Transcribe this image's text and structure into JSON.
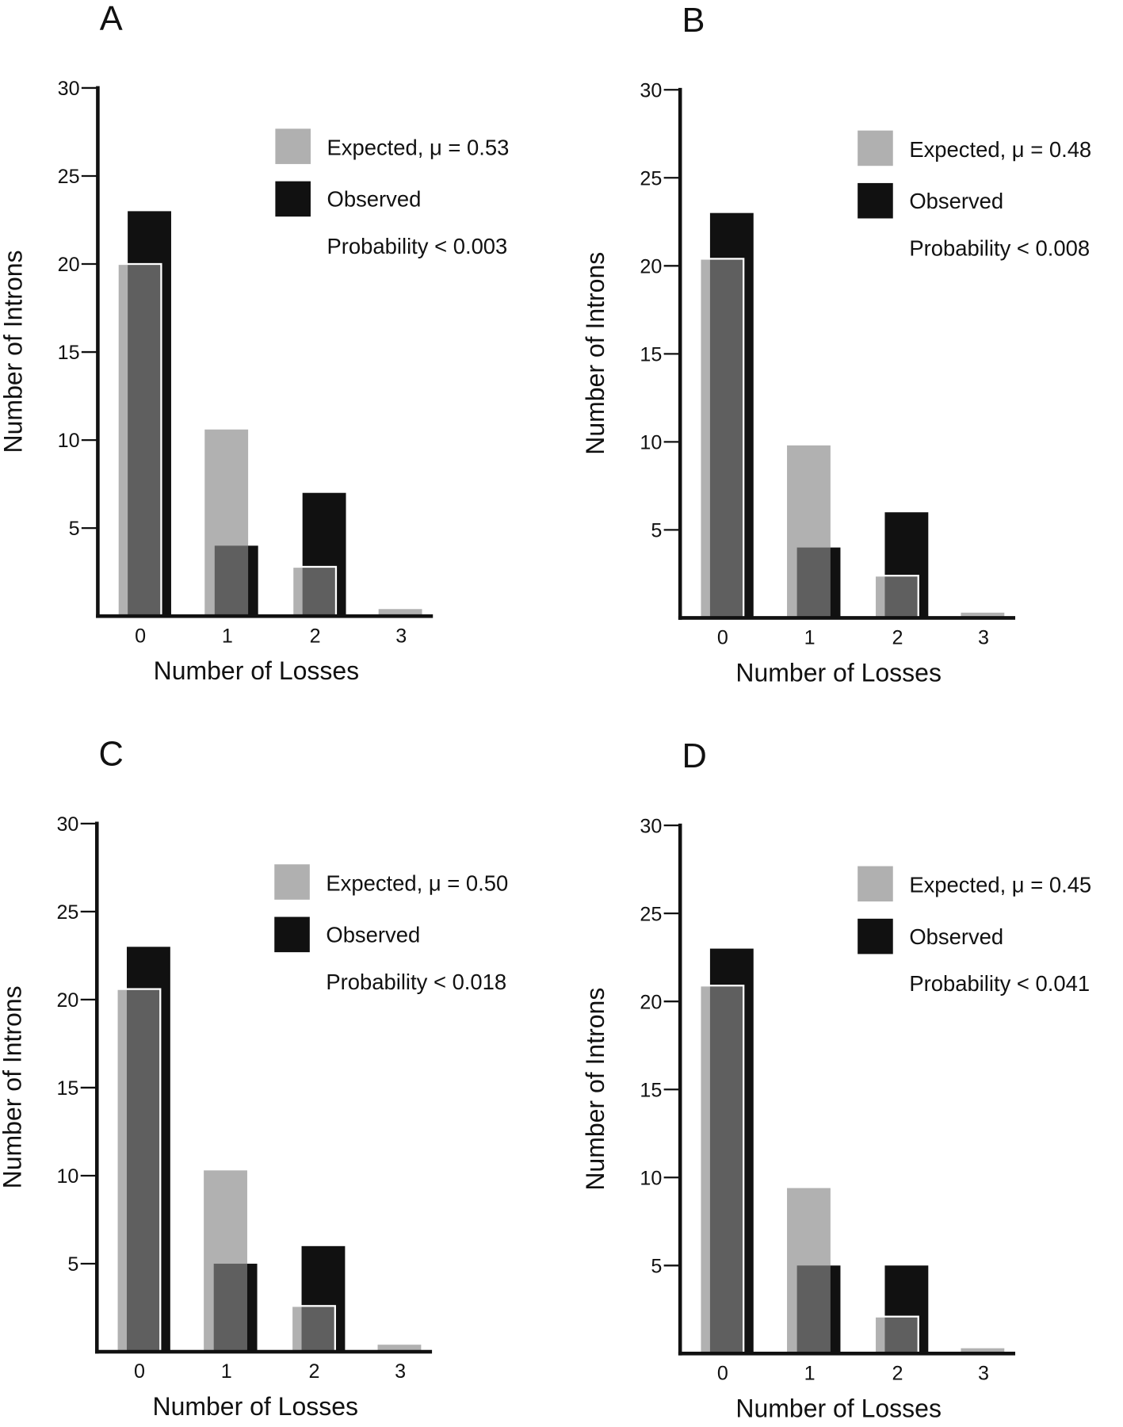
{
  "colors": {
    "expected": "#b0b0b0",
    "observed": "#111111",
    "overlap": "#5a5a5a"
  },
  "chart_data": [
    {
      "panel": "A",
      "type": "bar",
      "categories": [
        "0",
        "1",
        "2",
        "3"
      ],
      "xlabel": "Number of Losses",
      "ylabel": "Number of Introns",
      "ylim": [
        0,
        30
      ],
      "yticks": [
        "5",
        "10",
        "15",
        "20",
        "25",
        "30"
      ],
      "legend": {
        "expected": "Expected, μ = 0.53",
        "observed": "Observed",
        "note": "Probability < 0.003"
      },
      "series": [
        {
          "name": "Expected",
          "values": [
            20.0,
            10.6,
            2.8,
            0.4
          ]
        },
        {
          "name": "Observed",
          "values": [
            23,
            4,
            7,
            0
          ]
        }
      ]
    },
    {
      "panel": "B",
      "type": "bar",
      "categories": [
        "0",
        "1",
        "2",
        "3"
      ],
      "xlabel": "Number of Losses",
      "ylabel": "Number of Introns",
      "ylim": [
        0,
        30
      ],
      "yticks": [
        "5",
        "10",
        "15",
        "20",
        "25",
        "30"
      ],
      "legend": {
        "expected": "Expected, μ = 0.48",
        "observed": "Observed",
        "note": "Probability < 0.008"
      },
      "series": [
        {
          "name": "Expected",
          "values": [
            20.4,
            9.8,
            2.4,
            0.3
          ]
        },
        {
          "name": "Observed",
          "values": [
            23,
            4,
            6,
            0
          ]
        }
      ]
    },
    {
      "panel": "C",
      "type": "bar",
      "categories": [
        "0",
        "1",
        "2",
        "3"
      ],
      "xlabel": "Number of Losses",
      "ylabel": "Number of Introns",
      "ylim": [
        0,
        30
      ],
      "yticks": [
        "5",
        "10",
        "15",
        "20",
        "25",
        "30"
      ],
      "legend": {
        "expected": "Expected, μ = 0.50",
        "observed": "Observed",
        "note": "Probability < 0.018"
      },
      "series": [
        {
          "name": "Expected",
          "values": [
            20.6,
            10.3,
            2.6,
            0.4
          ]
        },
        {
          "name": "Observed",
          "values": [
            23,
            5,
            6,
            0
          ]
        }
      ]
    },
    {
      "panel": "D",
      "type": "bar",
      "categories": [
        "0",
        "1",
        "2",
        "3"
      ],
      "xlabel": "Number of Losses",
      "ylabel": "Number of Introns",
      "ylim": [
        0,
        30
      ],
      "yticks": [
        "5",
        "10",
        "15",
        "20",
        "25",
        "30"
      ],
      "legend": {
        "expected": "Expected, μ = 0.45",
        "observed": "Observed",
        "note": "Probability < 0.041"
      },
      "series": [
        {
          "name": "Expected",
          "values": [
            20.9,
            9.4,
            2.1,
            0.3
          ]
        },
        {
          "name": "Observed",
          "values": [
            23,
            5,
            5,
            0
          ]
        }
      ]
    }
  ]
}
